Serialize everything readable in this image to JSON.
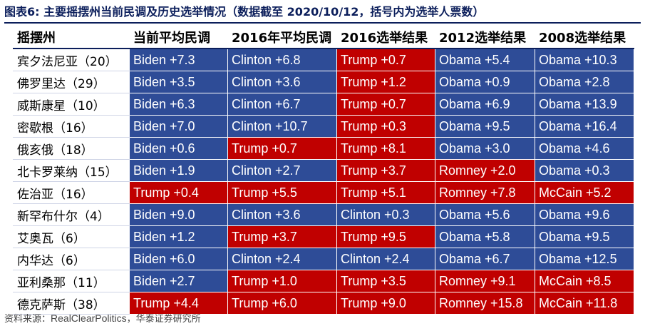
{
  "title": "图表6:  主要摇摆州当前民调及历史选举情况（数据截至 2020/10/12，括号内为选举人票数）",
  "headers": [
    "摇摆州",
    "当前平均民调",
    "2016年平均民调",
    "2016选举结果",
    "2012选举结果",
    "2008选举结果"
  ],
  "rows": [
    {
      "state": "宾夕法尼亚（20）",
      "cells": [
        {
          "t": "Biden +7.3",
          "p": "D"
        },
        {
          "t": "Clinton +6.8",
          "p": "D"
        },
        {
          "t": "Trump +0.7",
          "p": "R"
        },
        {
          "t": "Obama +5.4",
          "p": "D"
        },
        {
          "t": "Obama +10.3",
          "p": "D"
        }
      ]
    },
    {
      "state": "佛罗里达（29）",
      "cells": [
        {
          "t": "Biden +3.5",
          "p": "D"
        },
        {
          "t": "Clinton +3.6",
          "p": "D"
        },
        {
          "t": "Trump +1.2",
          "p": "R"
        },
        {
          "t": "Obama +0.9",
          "p": "D"
        },
        {
          "t": "Obama +2.8",
          "p": "D"
        }
      ]
    },
    {
      "state": "威斯康星（10）",
      "cells": [
        {
          "t": "Biden +6.3",
          "p": "D"
        },
        {
          "t": "Clinton +6.7",
          "p": "D"
        },
        {
          "t": "Trump +0.7",
          "p": "R"
        },
        {
          "t": "Obama +6.9",
          "p": "D"
        },
        {
          "t": "Obama +13.9",
          "p": "D"
        }
      ]
    },
    {
      "state": "密歇根（16）",
      "cells": [
        {
          "t": "Biden +7.0",
          "p": "D"
        },
        {
          "t": "Clinton +10.7",
          "p": "D"
        },
        {
          "t": "Trump +0.3",
          "p": "R"
        },
        {
          "t": "Obama +9.5",
          "p": "D"
        },
        {
          "t": "Obama +16.4",
          "p": "D"
        }
      ]
    },
    {
      "state": "俄亥俄（18）",
      "cells": [
        {
          "t": "Biden +0.6",
          "p": "D"
        },
        {
          "t": "Trump +0.7",
          "p": "R"
        },
        {
          "t": "Trump +8.1",
          "p": "R"
        },
        {
          "t": "Obama +3.0",
          "p": "D"
        },
        {
          "t": "Obama +4.6",
          "p": "D"
        }
      ]
    },
    {
      "state": "北卡罗莱纳（15）",
      "cells": [
        {
          "t": "Biden +1.9",
          "p": "D"
        },
        {
          "t": "Clinton +2.7",
          "p": "D"
        },
        {
          "t": "Trump +3.7",
          "p": "R"
        },
        {
          "t": "Romney +2.0",
          "p": "R"
        },
        {
          "t": "Obama +0.3",
          "p": "D"
        }
      ]
    },
    {
      "state": "佐治亚（16）",
      "cells": [
        {
          "t": "Trump +0.4",
          "p": "R"
        },
        {
          "t": "Trump +5.5",
          "p": "R"
        },
        {
          "t": "Trump +5.1",
          "p": "R"
        },
        {
          "t": "Romney +7.8",
          "p": "R"
        },
        {
          "t": "McCain +5.2",
          "p": "R"
        }
      ]
    },
    {
      "state": "新罕布什尔（4）",
      "cells": [
        {
          "t": "Biden +9.0",
          "p": "D"
        },
        {
          "t": "Clinton +3.6",
          "p": "D"
        },
        {
          "t": "Clinton +0.3",
          "p": "D"
        },
        {
          "t": "Obama +5.6",
          "p": "D"
        },
        {
          "t": "Obama +9.6",
          "p": "D"
        }
      ]
    },
    {
      "state": "艾奥瓦（6）",
      "cells": [
        {
          "t": "Biden +1.2",
          "p": "D"
        },
        {
          "t": "Trump +3.7",
          "p": "R"
        },
        {
          "t": "Trump +9.5",
          "p": "R"
        },
        {
          "t": "Obama +5.8",
          "p": "D"
        },
        {
          "t": "Obama +9.5",
          "p": "D"
        }
      ]
    },
    {
      "state": "内华达（6）",
      "cells": [
        {
          "t": "Biden +6.0",
          "p": "D"
        },
        {
          "t": "Clinton +2.4",
          "p": "D"
        },
        {
          "t": "Clinton +2.4",
          "p": "D"
        },
        {
          "t": "Obama +6.7",
          "p": "D"
        },
        {
          "t": "Obama +12.5",
          "p": "D"
        }
      ]
    },
    {
      "state": "亚利桑那（11）",
      "cells": [
        {
          "t": "Biden +2.7",
          "p": "D"
        },
        {
          "t": "Trump +1.0",
          "p": "R"
        },
        {
          "t": "Trump +3.5",
          "p": "R"
        },
        {
          "t": "Romney +9.1",
          "p": "R"
        },
        {
          "t": "McCain +8.5",
          "p": "R"
        }
      ]
    },
    {
      "state": "德克萨斯（38）",
      "cells": [
        {
          "t": "Trump +4.4",
          "p": "R"
        },
        {
          "t": "Trump +6.0",
          "p": "R"
        },
        {
          "t": "Trump +9.0",
          "p": "R"
        },
        {
          "t": "Romney +15.8",
          "p": "R"
        },
        {
          "t": "McCain +11.8",
          "p": "R"
        }
      ]
    }
  ],
  "source": {
    "prefix": "资料来源：",
    "en": "RealClearPolitics",
    "suffix": "，华泰证券研究所"
  },
  "colors": {
    "democrat": "#2e4c97",
    "republican": "#c00000",
    "title": "#0b1e5b"
  }
}
